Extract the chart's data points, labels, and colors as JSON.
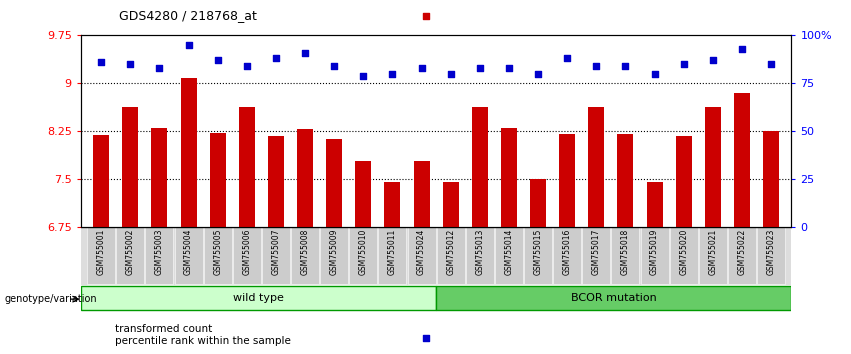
{
  "title": "GDS4280 / 218768_at",
  "samples": [
    "GSM755001",
    "GSM755002",
    "GSM755003",
    "GSM755004",
    "GSM755005",
    "GSM755006",
    "GSM755007",
    "GSM755008",
    "GSM755009",
    "GSM755010",
    "GSM755011",
    "GSM755024",
    "GSM755012",
    "GSM755013",
    "GSM755014",
    "GSM755015",
    "GSM755016",
    "GSM755017",
    "GSM755018",
    "GSM755019",
    "GSM755020",
    "GSM755021",
    "GSM755022",
    "GSM755023"
  ],
  "bar_values": [
    8.19,
    8.62,
    8.3,
    9.08,
    8.22,
    8.62,
    8.17,
    8.28,
    8.13,
    7.78,
    7.45,
    7.78,
    7.45,
    8.62,
    8.3,
    7.5,
    8.2,
    8.62,
    8.2,
    7.45,
    8.17,
    8.62,
    8.85,
    8.25
  ],
  "dot_values_pct": [
    86,
    85,
    83,
    95,
    87,
    84,
    88,
    91,
    84,
    79,
    80,
    83,
    80,
    83,
    83,
    80,
    88,
    84,
    84,
    80,
    85,
    87,
    93,
    85
  ],
  "bar_color": "#cc0000",
  "dot_color": "#0000cc",
  "ylim_left": [
    6.75,
    9.75
  ],
  "ylim_right": [
    0,
    100
  ],
  "yticks_left": [
    6.75,
    7.5,
    8.25,
    9.0,
    9.75
  ],
  "ytick_labels_left": [
    "6.75",
    "7.5",
    "8.25",
    "9",
    "9.75"
  ],
  "yticks_right": [
    0,
    25,
    50,
    75,
    100
  ],
  "ytick_labels_right": [
    "0",
    "25",
    "50",
    "75",
    "100%"
  ],
  "wild_type_label": "wild type",
  "bcor_label": "BCOR mutation",
  "group_label": "genotype/variation",
  "legend_bar": "transformed count",
  "legend_dot": "percentile rank within the sample",
  "wild_type_color": "#ccffcc",
  "bcor_color": "#66cc66",
  "wild_type_edge": "#009900",
  "bcor_edge": "#009900",
  "bg_color": "#ffffff",
  "tick_label_bg": "#cccccc",
  "n_wild_type": 12,
  "bar_bottom": 6.75
}
